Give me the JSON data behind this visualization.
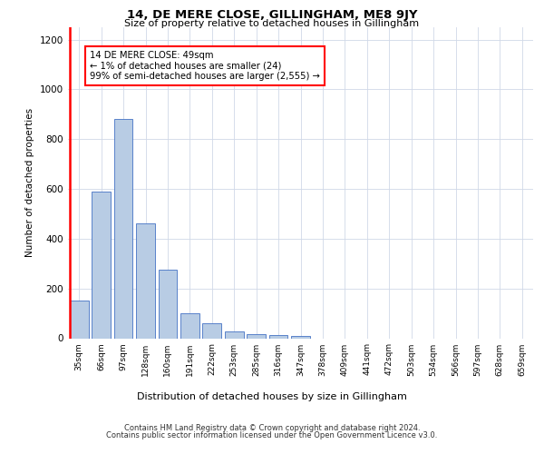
{
  "title": "14, DE MERE CLOSE, GILLINGHAM, ME8 9JY",
  "subtitle": "Size of property relative to detached houses in Gillingham",
  "xlabel": "Distribution of detached houses by size in Gillingham",
  "ylabel": "Number of detached properties",
  "categories": [
    "35sqm",
    "66sqm",
    "97sqm",
    "128sqm",
    "160sqm",
    "191sqm",
    "222sqm",
    "253sqm",
    "285sqm",
    "316sqm",
    "347sqm",
    "378sqm",
    "409sqm",
    "441sqm",
    "472sqm",
    "503sqm",
    "534sqm",
    "566sqm",
    "597sqm",
    "628sqm",
    "659sqm"
  ],
  "values": [
    150,
    590,
    880,
    460,
    275,
    100,
    60,
    28,
    18,
    12,
    10,
    0,
    0,
    0,
    0,
    0,
    0,
    0,
    0,
    0,
    0
  ],
  "bar_color": "#b8cce4",
  "bar_edge_color": "#4472c4",
  "highlight_color": "#ff0000",
  "annotation_text": "14 DE MERE CLOSE: 49sqm\n← 1% of detached houses are smaller (24)\n99% of semi-detached houses are larger (2,555) →",
  "annotation_box_color": "#ffffff",
  "annotation_box_edge": "#ff0000",
  "ylim": [
    0,
    1250
  ],
  "yticks": [
    0,
    200,
    400,
    600,
    800,
    1000,
    1200
  ],
  "footer_line1": "Contains HM Land Registry data © Crown copyright and database right 2024.",
  "footer_line2": "Contains public sector information licensed under the Open Government Licence v3.0.",
  "background_color": "#ffffff",
  "grid_color": "#d0d8e8"
}
